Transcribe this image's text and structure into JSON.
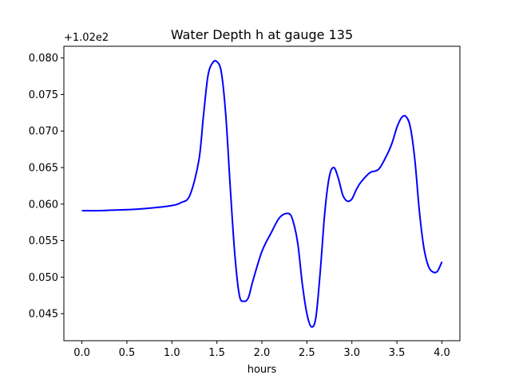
{
  "chart_data": {
    "type": "line",
    "title": "Water Depth h at gauge 135",
    "xlabel": "hours",
    "ylabel": "",
    "offset_label": "+1.02e2",
    "xlim": [
      -0.2,
      4.2
    ],
    "ylim": [
      0.0413,
      0.0816
    ],
    "xticks": [
      0.0,
      0.5,
      1.0,
      1.5,
      2.0,
      2.5,
      3.0,
      3.5,
      4.0
    ],
    "xtick_labels": [
      "0.0",
      "0.5",
      "1.0",
      "1.5",
      "2.0",
      "2.5",
      "3.0",
      "3.5",
      "4.0"
    ],
    "yticks": [
      0.045,
      0.05,
      0.055,
      0.06,
      0.065,
      0.07,
      0.075,
      0.08
    ],
    "ytick_labels": [
      "0.045",
      "0.050",
      "0.055",
      "0.060",
      "0.065",
      "0.070",
      "0.075",
      "0.080"
    ],
    "grid": false,
    "legend": "none",
    "series": [
      {
        "color": "#0000ff",
        "x": [
          0.0,
          0.2,
          0.4,
          0.6,
          0.8,
          1.0,
          1.1,
          1.2,
          1.3,
          1.35,
          1.4,
          1.45,
          1.5,
          1.55,
          1.6,
          1.65,
          1.7,
          1.75,
          1.8,
          1.85,
          1.9,
          2.0,
          2.1,
          2.2,
          2.3,
          2.35,
          2.4,
          2.45,
          2.5,
          2.55,
          2.6,
          2.65,
          2.7,
          2.75,
          2.8,
          2.85,
          2.9,
          2.95,
          3.0,
          3.05,
          3.1,
          3.2,
          3.3,
          3.4,
          3.45,
          3.5,
          3.55,
          3.6,
          3.65,
          3.7,
          3.75,
          3.8,
          3.85,
          3.9,
          3.95,
          4.0
        ],
        "y": [
          0.0591,
          0.0591,
          0.0592,
          0.0593,
          0.0595,
          0.0598,
          0.0602,
          0.0612,
          0.066,
          0.072,
          0.0775,
          0.0793,
          0.0795,
          0.078,
          0.072,
          0.062,
          0.053,
          0.0475,
          0.0467,
          0.0472,
          0.0495,
          0.0535,
          0.056,
          0.0582,
          0.0587,
          0.0575,
          0.0545,
          0.049,
          0.045,
          0.0432,
          0.0445,
          0.051,
          0.059,
          0.0638,
          0.065,
          0.0635,
          0.0612,
          0.0604,
          0.0607,
          0.062,
          0.063,
          0.0643,
          0.0648,
          0.067,
          0.0685,
          0.0705,
          0.0718,
          0.072,
          0.0705,
          0.066,
          0.059,
          0.054,
          0.0515,
          0.0507,
          0.0508,
          0.0521
        ]
      }
    ]
  }
}
